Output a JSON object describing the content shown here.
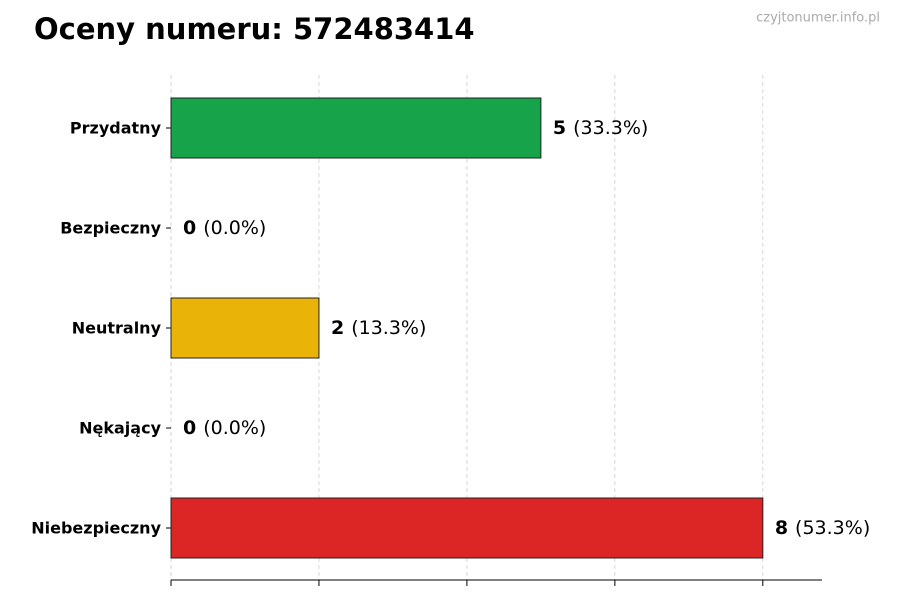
{
  "chart_data": {
    "type": "barh",
    "title": "Oceny numeru: 572483414",
    "watermark": "czyjtonumer.info.pl",
    "categories": [
      "Przydatny",
      "Bezpieczny",
      "Neutralny",
      "Nękający",
      "Niebezpieczny"
    ],
    "values": [
      5,
      0,
      2,
      0,
      8
    ],
    "share_labels": [
      "(33.3%)",
      "(0.0%)",
      "(13.3%)",
      "(0.0%)",
      "(53.3%)"
    ],
    "colors": [
      "#16a34a",
      "#84cc16",
      "#eab308",
      "#f97316",
      "#dc2626"
    ],
    "xlim": [
      0,
      8.8
    ],
    "xticks": [
      0,
      2,
      4,
      6,
      8
    ],
    "grid": true
  }
}
